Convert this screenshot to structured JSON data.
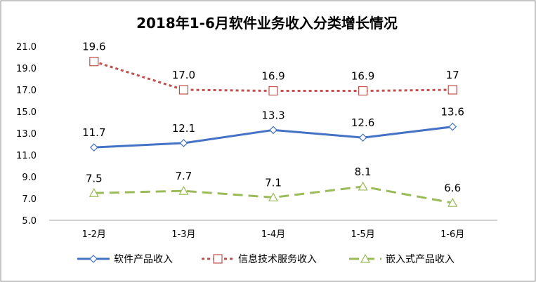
{
  "chart_data": {
    "type": "line",
    "title": "2018年1-6月软件业务收入分类增长情况",
    "categories": [
      "1-2月",
      "1-3月",
      "1-4月",
      "1-5月",
      "1-6月"
    ],
    "ylim": [
      5.0,
      21.0
    ],
    "yticks": [
      "5.0",
      "7.0",
      "9.0",
      "11.0",
      "13.0",
      "15.0",
      "17.0",
      "19.0",
      "21.0"
    ],
    "xlabel": "",
    "ylabel": "",
    "grid": false,
    "legend_position": "bottom",
    "series": [
      {
        "name": "软件产品收入",
        "color": "#4472C4",
        "marker": "diamond",
        "dash": "solid",
        "values": [
          11.7,
          12.1,
          13.3,
          12.6,
          13.6
        ],
        "labels": [
          "11.7",
          "12.1",
          "13.3",
          "12.6",
          "13.6"
        ]
      },
      {
        "name": "信息技术服务收入",
        "color": "#C0504D",
        "marker": "square",
        "dash": "dot",
        "values": [
          19.6,
          17.0,
          16.9,
          16.9,
          17.0
        ],
        "labels": [
          "19.6",
          "17.0",
          "16.9",
          "16.9",
          "17"
        ]
      },
      {
        "name": "嵌入式产品收入",
        "color": "#9BBB59",
        "marker": "triangle",
        "dash": "dash",
        "values": [
          7.5,
          7.7,
          7.1,
          8.1,
          6.6
        ],
        "labels": [
          "7.5",
          "7.7",
          "7.1",
          "8.1",
          "6.6"
        ]
      }
    ]
  }
}
